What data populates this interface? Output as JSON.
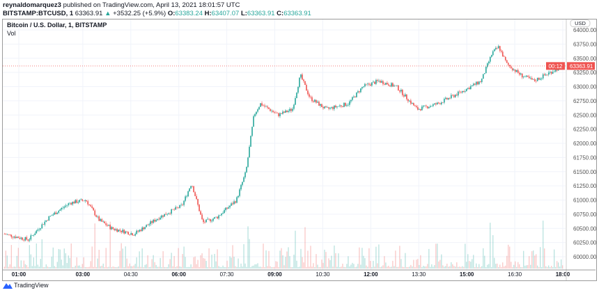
{
  "header": {
    "author": "reynaldomarquez3",
    "published": "published on TradingView.com, April 13, 2021 18:01:57 UTC",
    "symbol": "BITSTAMP:BTCUSD, 1",
    "last": "63363.91",
    "change": "+3532.25 (+5.9%)",
    "o_label": "O:",
    "o": "63383.24",
    "h_label": "H:",
    "h": "63407.07",
    "l_label": "L:",
    "l": "63363.91",
    "c_label": "C:",
    "c": "63363.91"
  },
  "chart_title": "Bitcoin / U.S. Dollar, 1, BITSTAMP",
  "volume_label": "Vol",
  "footer": {
    "brand": "TradingView"
  },
  "chart_data": {
    "type": "candlestick",
    "currency": "USD",
    "y_ticks": [
      "64000.00",
      "63750.00",
      "63500.00",
      "63250.00",
      "63000.00",
      "62750.00",
      "62500.00",
      "62250.00",
      "62000.00",
      "61750.00",
      "61500.00",
      "61250.00",
      "61000.00",
      "60750.00",
      "60500.00",
      "60250.00",
      "60000.00"
    ],
    "ylim": [
      59850,
      64250
    ],
    "x_ticks": [
      {
        "label": "01:00",
        "h": 1
      },
      {
        "label": "03:00",
        "h": 3
      },
      {
        "label": "04:30",
        "h": 4.5
      },
      {
        "label": "06:00",
        "h": 6
      },
      {
        "label": "07:30",
        "h": 7.5
      },
      {
        "label": "09:00",
        "h": 9
      },
      {
        "label": "10:30",
        "h": 10.5
      },
      {
        "label": "12:00",
        "h": 12
      },
      {
        "label": "13:30",
        "h": 13.5
      },
      {
        "label": "15:00",
        "h": 15
      },
      {
        "label": "16:30",
        "h": 16.5
      },
      {
        "label": "18:00",
        "h": 18
      }
    ],
    "price_path": [
      [
        0.55,
        60400
      ],
      [
        1.3,
        60300
      ],
      [
        1.95,
        60700
      ],
      [
        2.6,
        60950
      ],
      [
        3.1,
        61000
      ],
      [
        3.5,
        60650
      ],
      [
        3.9,
        60500
      ],
      [
        4.6,
        60400
      ],
      [
        5.4,
        60700
      ],
      [
        6.1,
        60900
      ],
      [
        6.4,
        61300
      ],
      [
        6.75,
        60600
      ],
      [
        7.2,
        60700
      ],
      [
        7.8,
        61000
      ],
      [
        8.1,
        61500
      ],
      [
        8.35,
        62500
      ],
      [
        8.55,
        62700
      ],
      [
        9.1,
        62500
      ],
      [
        9.55,
        62600
      ],
      [
        9.8,
        63200
      ],
      [
        10.1,
        62800
      ],
      [
        10.6,
        62600
      ],
      [
        11.3,
        62700
      ],
      [
        11.75,
        63000
      ],
      [
        12.25,
        63100
      ],
      [
        12.8,
        63000
      ],
      [
        13.45,
        62600
      ],
      [
        14.1,
        62700
      ],
      [
        14.8,
        62900
      ],
      [
        15.45,
        63100
      ],
      [
        15.8,
        63600
      ],
      [
        16.0,
        63700
      ],
      [
        16.25,
        63400
      ],
      [
        16.7,
        63200
      ],
      [
        17.1,
        63100
      ],
      [
        17.6,
        63250
      ],
      [
        18.0,
        63363.91
      ]
    ],
    "current_price": "63363.91",
    "countdown": "00:12",
    "colors": {
      "up": "#26a69a",
      "down": "#ef5350"
    }
  }
}
